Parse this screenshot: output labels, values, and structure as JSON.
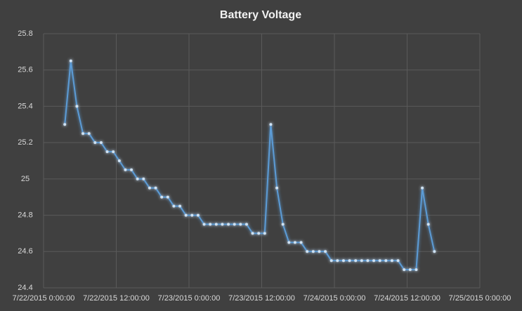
{
  "chart_data": {
    "type": "line",
    "title": "Battery Voltage",
    "color": "#5b9bd5",
    "grid": true,
    "x": [
      "7/22/2015 3:30:00",
      "7/22/2015 4:30:00",
      "7/22/2015 5:30:00",
      "7/22/2015 6:30:00",
      "7/22/2015 7:30:00",
      "7/22/2015 8:30:00",
      "7/22/2015 9:30:00",
      "7/22/2015 10:30:00",
      "7/22/2015 11:30:00",
      "7/22/2015 12:30:00",
      "7/22/2015 13:30:00",
      "7/22/2015 14:30:00",
      "7/22/2015 15:30:00",
      "7/22/2015 16:30:00",
      "7/22/2015 17:30:00",
      "7/22/2015 18:30:00",
      "7/22/2015 19:30:00",
      "7/22/2015 20:30:00",
      "7/22/2015 21:30:00",
      "7/22/2015 22:30:00",
      "7/22/2015 23:30:00",
      "7/23/2015 0:30:00",
      "7/23/2015 1:30:00",
      "7/23/2015 2:30:00",
      "7/23/2015 3:30:00",
      "7/23/2015 4:30:00",
      "7/23/2015 5:30:00",
      "7/23/2015 6:30:00",
      "7/23/2015 7:30:00",
      "7/23/2015 8:30:00",
      "7/23/2015 9:30:00",
      "7/23/2015 10:30:00",
      "7/23/2015 11:30:00",
      "7/23/2015 12:30:00",
      "7/23/2015 13:30:00",
      "7/23/2015 14:30:00",
      "7/23/2015 15:30:00",
      "7/23/2015 16:30:00",
      "7/23/2015 17:30:00",
      "7/23/2015 18:30:00",
      "7/23/2015 19:30:00",
      "7/23/2015 20:30:00",
      "7/23/2015 21:30:00",
      "7/23/2015 22:30:00",
      "7/23/2015 23:30:00",
      "7/24/2015 0:30:00",
      "7/24/2015 1:30:00",
      "7/24/2015 2:30:00",
      "7/24/2015 3:30:00",
      "7/24/2015 4:30:00",
      "7/24/2015 5:30:00",
      "7/24/2015 6:30:00",
      "7/24/2015 7:30:00",
      "7/24/2015 8:30:00",
      "7/24/2015 9:30:00",
      "7/24/2015 10:30:00",
      "7/24/2015 11:30:00",
      "7/24/2015 12:30:00",
      "7/24/2015 13:30:00",
      "7/24/2015 14:30:00",
      "7/24/2015 15:30:00",
      "7/24/2015 16:30:00"
    ],
    "values": [
      25.3,
      25.65,
      25.4,
      25.25,
      25.25,
      25.2,
      25.2,
      25.15,
      25.15,
      25.1,
      25.05,
      25.05,
      25.0,
      25.0,
      24.95,
      24.95,
      24.9,
      24.9,
      24.85,
      24.85,
      24.8,
      24.8,
      24.8,
      24.75,
      24.75,
      24.75,
      24.75,
      24.75,
      24.75,
      24.75,
      24.75,
      24.7,
      24.7,
      24.7,
      25.3,
      24.95,
      24.75,
      24.65,
      24.65,
      24.65,
      24.6,
      24.6,
      24.6,
      24.6,
      24.55,
      24.55,
      24.55,
      24.55,
      24.55,
      24.55,
      24.55,
      24.55,
      24.55,
      24.55,
      24.55,
      24.55,
      24.5,
      24.5,
      24.5,
      24.95,
      24.75,
      24.6
    ],
    "xlim": [
      "7/22/2015 0:00:00",
      "7/25/2015 0:00:00"
    ],
    "xticks": [
      "7/22/2015 0:00:00",
      "7/22/2015 12:00:00",
      "7/23/2015 0:00:00",
      "7/23/2015 12:00:00",
      "7/24/2015 0:00:00",
      "7/24/2015 12:00:00",
      "7/25/2015 0:00:00"
    ],
    "ylim": [
      24.4,
      25.8
    ],
    "yticks": [
      24.4,
      24.6,
      24.8,
      25,
      25.2,
      25.4,
      25.6,
      25.8
    ]
  }
}
